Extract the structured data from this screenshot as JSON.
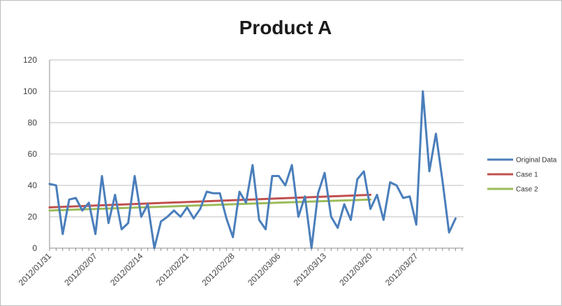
{
  "chart_data": {
    "type": "line",
    "title": "Product A",
    "xlabel": "",
    "ylabel": "",
    "ylim": [
      0,
      120
    ],
    "yticks": [
      0,
      20,
      40,
      60,
      80,
      100,
      120
    ],
    "grid": "horizontal",
    "legend_position": "right",
    "x_tick_labels": [
      "2012/01/31",
      "2012/02/07",
      "2012/02/14",
      "2012/02/21",
      "2012/02/28",
      "2012/03/06",
      "2012/03/13",
      "2012/03/20",
      "2012/03/27"
    ],
    "series": [
      {
        "name": "Original Data",
        "color": "#4a7ebb",
        "x": [
          "2012/01/31",
          "2012/02/01",
          "2012/02/02",
          "2012/02/03",
          "2012/02/04",
          "2012/02/05",
          "2012/02/06",
          "2012/02/07",
          "2012/02/08",
          "2012/02/09",
          "2012/02/10",
          "2012/02/11",
          "2012/02/12",
          "2012/02/13",
          "2012/02/14",
          "2012/02/15",
          "2012/02/16",
          "2012/02/17",
          "2012/02/18",
          "2012/02/19",
          "2012/02/20",
          "2012/02/21",
          "2012/02/22",
          "2012/02/23",
          "2012/02/24",
          "2012/02/25",
          "2012/02/26",
          "2012/02/27",
          "2012/02/28",
          "2012/02/29",
          "2012/03/01",
          "2012/03/02",
          "2012/03/03",
          "2012/03/04",
          "2012/03/05",
          "2012/03/06",
          "2012/03/07",
          "2012/03/08",
          "2012/03/09",
          "2012/03/10",
          "2012/03/11",
          "2012/03/12",
          "2012/03/13",
          "2012/03/14",
          "2012/03/15",
          "2012/03/16",
          "2012/03/17",
          "2012/03/18",
          "2012/03/19",
          "2012/03/20",
          "2012/03/21",
          "2012/03/22",
          "2012/03/23",
          "2012/03/24",
          "2012/03/25",
          "2012/03/26",
          "2012/03/27",
          "2012/03/28",
          "2012/03/29",
          "2012/03/30",
          "2012/03/31",
          "2012/04/01",
          "2012/04/02",
          "2012/04/03"
        ],
        "values": [
          41,
          40,
          9,
          31,
          32,
          24,
          29,
          9,
          46,
          16,
          34,
          12,
          16,
          46,
          20,
          28,
          0,
          17,
          20,
          24,
          20,
          26,
          19,
          25,
          36,
          35,
          35,
          19,
          7,
          36,
          29,
          53,
          18,
          12,
          46,
          46,
          40,
          53,
          20,
          33,
          0,
          35,
          48,
          20,
          13,
          28,
          18,
          44,
          49,
          25,
          34,
          18,
          42,
          40,
          32,
          33,
          15,
          100,
          49,
          73,
          43,
          10,
          19,
          null
        ]
      },
      {
        "name": "Case 1",
        "color": "#c0504d",
        "x": [
          "2012/01/31",
          "2012/03/20"
        ],
        "values": [
          26,
          34
        ]
      },
      {
        "name": "Case 2",
        "color": "#9bbb59",
        "x": [
          "2012/01/31",
          "2012/03/20"
        ],
        "values": [
          24,
          31
        ]
      }
    ]
  }
}
